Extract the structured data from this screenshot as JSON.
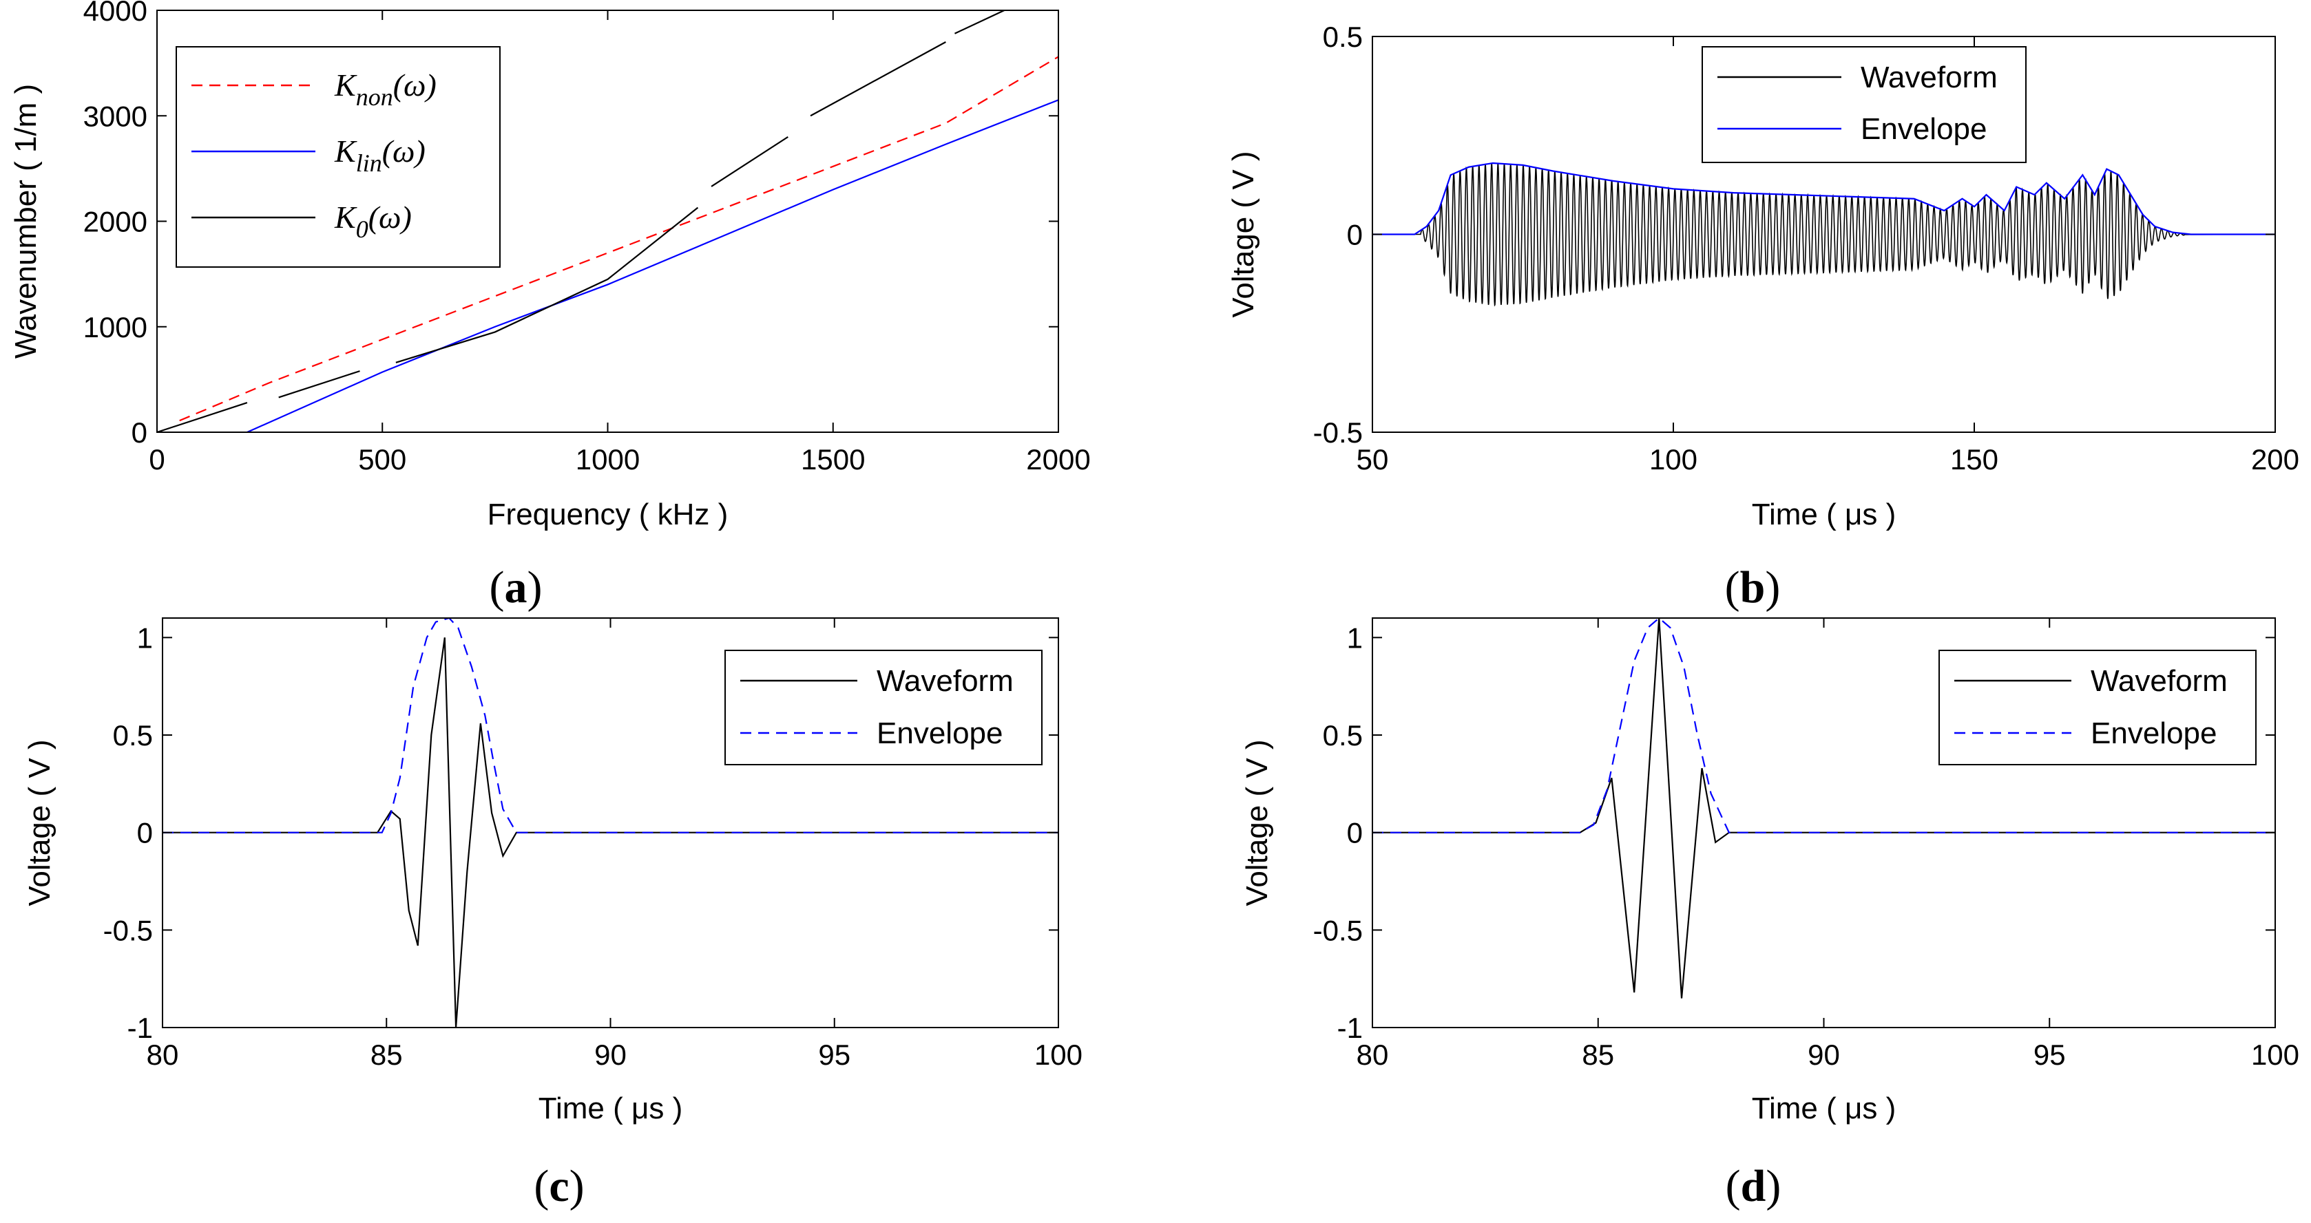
{
  "chart_data": [
    {
      "id": "a",
      "type": "line",
      "panel_label": "(a)",
      "panel_label_letter": "a",
      "xlabel": "Frequency ( kHz )",
      "ylabel": "Wavenumber ( 1/m )",
      "xlim": [
        0,
        2000
      ],
      "ylim": [
        0,
        4000
      ],
      "xticks": [
        "0",
        "500",
        "1000",
        "1500",
        "2000"
      ],
      "yticks": [
        "0",
        "1000",
        "2000",
        "3000",
        "4000"
      ],
      "legend_position": "top-left",
      "series": [
        {
          "name": "K_non(ω)",
          "name_base": "K",
          "name_sub": "non",
          "name_arg": "(ω)",
          "color": "#ff0000",
          "style": "dashed",
          "x": [
            50,
            250,
            500,
            750,
            1000,
            1250,
            1500,
            1750,
            2000
          ],
          "y": [
            110,
            470,
            880,
            1290,
            1700,
            2110,
            2520,
            2930,
            3560
          ]
        },
        {
          "name": "K_lin(ω)",
          "name_base": "K",
          "name_sub": "lin",
          "name_arg": "(ω)",
          "color": "#0000ff",
          "style": "solid",
          "x": [
            200,
            500,
            750,
            1000,
            1250,
            1500,
            1750,
            2000
          ],
          "y": [
            0,
            570,
            1000,
            1400,
            1850,
            2300,
            2730,
            3150
          ]
        },
        {
          "name": "K_0(ω)",
          "name_base": "K",
          "name_sub": "0",
          "name_arg": "(ω)",
          "color": "#000000",
          "style": "solid",
          "segments": [
            {
              "x": [
                0,
                200
              ],
              "y": [
                0,
                280
              ]
            },
            {
              "x": [
                270,
                450
              ],
              "y": [
                330,
                580
              ]
            },
            {
              "x": [
                530,
                750,
                1000,
                1200
              ],
              "y": [
                660,
                950,
                1450,
                2130
              ]
            },
            {
              "x": [
                1230,
                1400
              ],
              "y": [
                2330,
                2800
              ]
            },
            {
              "x": [
                1450,
                1750
              ],
              "y": [
                3000,
                3700
              ]
            },
            {
              "x": [
                1770,
                1880
              ],
              "y": [
                3780,
                4000
              ]
            }
          ]
        }
      ]
    },
    {
      "id": "b",
      "type": "line",
      "panel_label": "(b)",
      "panel_label_letter": "b",
      "xlabel": "Time ( μs )",
      "ylabel": "Voltage ( V )",
      "xlim": [
        50,
        200
      ],
      "ylim": [
        -0.5,
        0.5
      ],
      "xticks": [
        "50",
        "100",
        "150",
        "200"
      ],
      "yticks": [
        "-0.5",
        "0",
        "0.5"
      ],
      "legend_position": "top-center",
      "series": [
        {
          "name": "Waveform",
          "color": "#000000",
          "style": "solid",
          "signal": {
            "start": 58,
            "end": 185,
            "period": 1.05
          }
        },
        {
          "name": "Envelope",
          "color": "#0000ff",
          "style": "solid",
          "x": [
            50,
            57,
            59,
            61,
            63,
            66,
            70,
            75,
            80,
            90,
            100,
            110,
            120,
            130,
            140,
            145,
            148,
            150,
            152,
            155,
            157,
            160,
            162,
            165,
            168,
            170,
            172,
            174,
            176,
            178,
            180,
            183,
            186,
            200
          ],
          "y": [
            0,
            0,
            0.02,
            0.06,
            0.15,
            0.17,
            0.18,
            0.175,
            0.16,
            0.135,
            0.115,
            0.105,
            0.1,
            0.095,
            0.09,
            0.06,
            0.09,
            0.07,
            0.1,
            0.06,
            0.12,
            0.1,
            0.13,
            0.09,
            0.15,
            0.1,
            0.165,
            0.15,
            0.1,
            0.05,
            0.02,
            0.005,
            0,
            0
          ]
        }
      ]
    },
    {
      "id": "c",
      "type": "line",
      "panel_label": "(c)",
      "panel_label_letter": "c",
      "xlabel": "Time ( μs )",
      "ylabel": "Voltage ( V )",
      "xlim": [
        80,
        100
      ],
      "ylim": [
        -1,
        1.1
      ],
      "xticks": [
        "80",
        "85",
        "90",
        "95",
        "100"
      ],
      "yticks": [
        "-1",
        "-0.5",
        "0",
        "0.5",
        "1"
      ],
      "legend_position": "top-right",
      "series": [
        {
          "name": "Waveform",
          "color": "#000000",
          "style": "solid",
          "x": [
            80,
            84.8,
            85.1,
            85.3,
            85.5,
            85.7,
            86.0,
            86.3,
            86.55,
            86.8,
            87.1,
            87.35,
            87.6,
            87.9,
            100
          ],
          "y": [
            0,
            0,
            0.11,
            0.07,
            -0.4,
            -0.58,
            0.5,
            1.0,
            -1.0,
            -0.2,
            0.56,
            0.1,
            -0.12,
            0,
            0
          ]
        },
        {
          "name": "Envelope",
          "color": "#0000ff",
          "style": "dashed",
          "x": [
            80,
            84.9,
            85.1,
            85.3,
            85.6,
            85.9,
            86.1,
            86.4,
            86.6,
            86.9,
            87.2,
            87.4,
            87.6,
            87.9,
            100
          ],
          "y": [
            0,
            0,
            0.1,
            0.28,
            0.75,
            1.0,
            1.08,
            1.1,
            1.05,
            0.85,
            0.6,
            0.35,
            0.12,
            0,
            0
          ]
        }
      ]
    },
    {
      "id": "d",
      "type": "line",
      "panel_label": "(d)",
      "panel_label_letter": "d",
      "xlabel": "Time ( μs )",
      "ylabel": "Voltage ( V )",
      "xlim": [
        80,
        100
      ],
      "ylim": [
        -1,
        1.1
      ],
      "xticks": [
        "80",
        "85",
        "90",
        "95",
        "100"
      ],
      "yticks": [
        "-1",
        "-0.5",
        "0",
        "0.5",
        "1"
      ],
      "legend_position": "top-right",
      "series": [
        {
          "name": "Waveform",
          "color": "#000000",
          "style": "solid",
          "x": [
            80,
            84.6,
            84.95,
            85.3,
            85.8,
            86.35,
            86.85,
            87.3,
            87.6,
            87.9,
            100
          ],
          "y": [
            0,
            0,
            0.05,
            0.28,
            -0.82,
            1.1,
            -0.85,
            0.33,
            -0.05,
            0,
            0
          ]
        },
        {
          "name": "Envelope",
          "color": "#0000ff",
          "style": "dashed",
          "x": [
            80,
            84.6,
            84.9,
            85.2,
            85.5,
            85.8,
            86.1,
            86.35,
            86.6,
            86.9,
            87.2,
            87.5,
            87.9,
            100
          ],
          "y": [
            0,
            0,
            0.04,
            0.22,
            0.55,
            0.88,
            1.05,
            1.1,
            1.05,
            0.85,
            0.5,
            0.2,
            0,
            0
          ]
        }
      ]
    }
  ]
}
